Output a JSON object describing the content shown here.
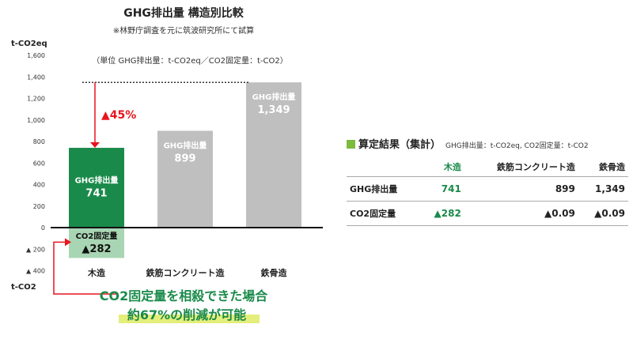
{
  "chart_data": {
    "type": "bar",
    "title": "GHG排出量 構造別比較",
    "subtitle": "※林野庁調査を元に筑波研究所にて試算",
    "units_note": "（単位 GHG排出量：t-CO2eq／CO2固定量：t-CO2）",
    "y_unit_top": "t-CO2eq",
    "y_unit_bottom": "t-CO2",
    "ylim": [
      -400,
      1600
    ],
    "ticks": [
      {
        "value": 1600,
        "label": "1,600"
      },
      {
        "value": 1400,
        "label": "1,400"
      },
      {
        "value": 1200,
        "label": "1,200"
      },
      {
        "value": 1000,
        "label": "1,000"
      },
      {
        "value": 800,
        "label": "800"
      },
      {
        "value": 600,
        "label": "600"
      },
      {
        "value": 400,
        "label": "400"
      },
      {
        "value": 200,
        "label": "200"
      },
      {
        "value": 0,
        "label": "0"
      },
      {
        "value": -200,
        "label": "▲ 200"
      },
      {
        "value": -400,
        "label": "▲ 400"
      }
    ],
    "categories": [
      "木造",
      "鉄筋コンクリート造",
      "鉄骨造"
    ],
    "series": [
      {
        "name": "GHG排出量",
        "values": [
          741,
          899,
          1349
        ],
        "labels": [
          "741",
          "899",
          "1,349"
        ]
      },
      {
        "name": "CO2固定量",
        "values": [
          -282,
          0,
          0
        ],
        "labels": [
          "▲282",
          "",
          ""
        ]
      }
    ],
    "colors": {
      "wood": "#1a8a4a",
      "other": "#bfbfbf",
      "co2": "#a8d5b3",
      "red": "#e8141e"
    },
    "annotation": {
      "text": "▲45%",
      "reference_value": 1349
    },
    "message": [
      "CO2固定量を相殺できた場合",
      "約67%の削減が可能"
    ]
  },
  "summary": {
    "title": "算定結果（集計）",
    "note": "GHG排出量：t-CO2eq, CO2固定量：t-CO2",
    "columns": [
      "木造",
      "鉄筋コンクリート造",
      "鉄骨造"
    ],
    "rows": [
      {
        "label": "GHG排出量",
        "values": [
          "741",
          "899",
          "1,349"
        ]
      },
      {
        "label": "CO2固定量",
        "values": [
          "▲282",
          "▲0.09",
          "▲0.09"
        ]
      }
    ]
  }
}
